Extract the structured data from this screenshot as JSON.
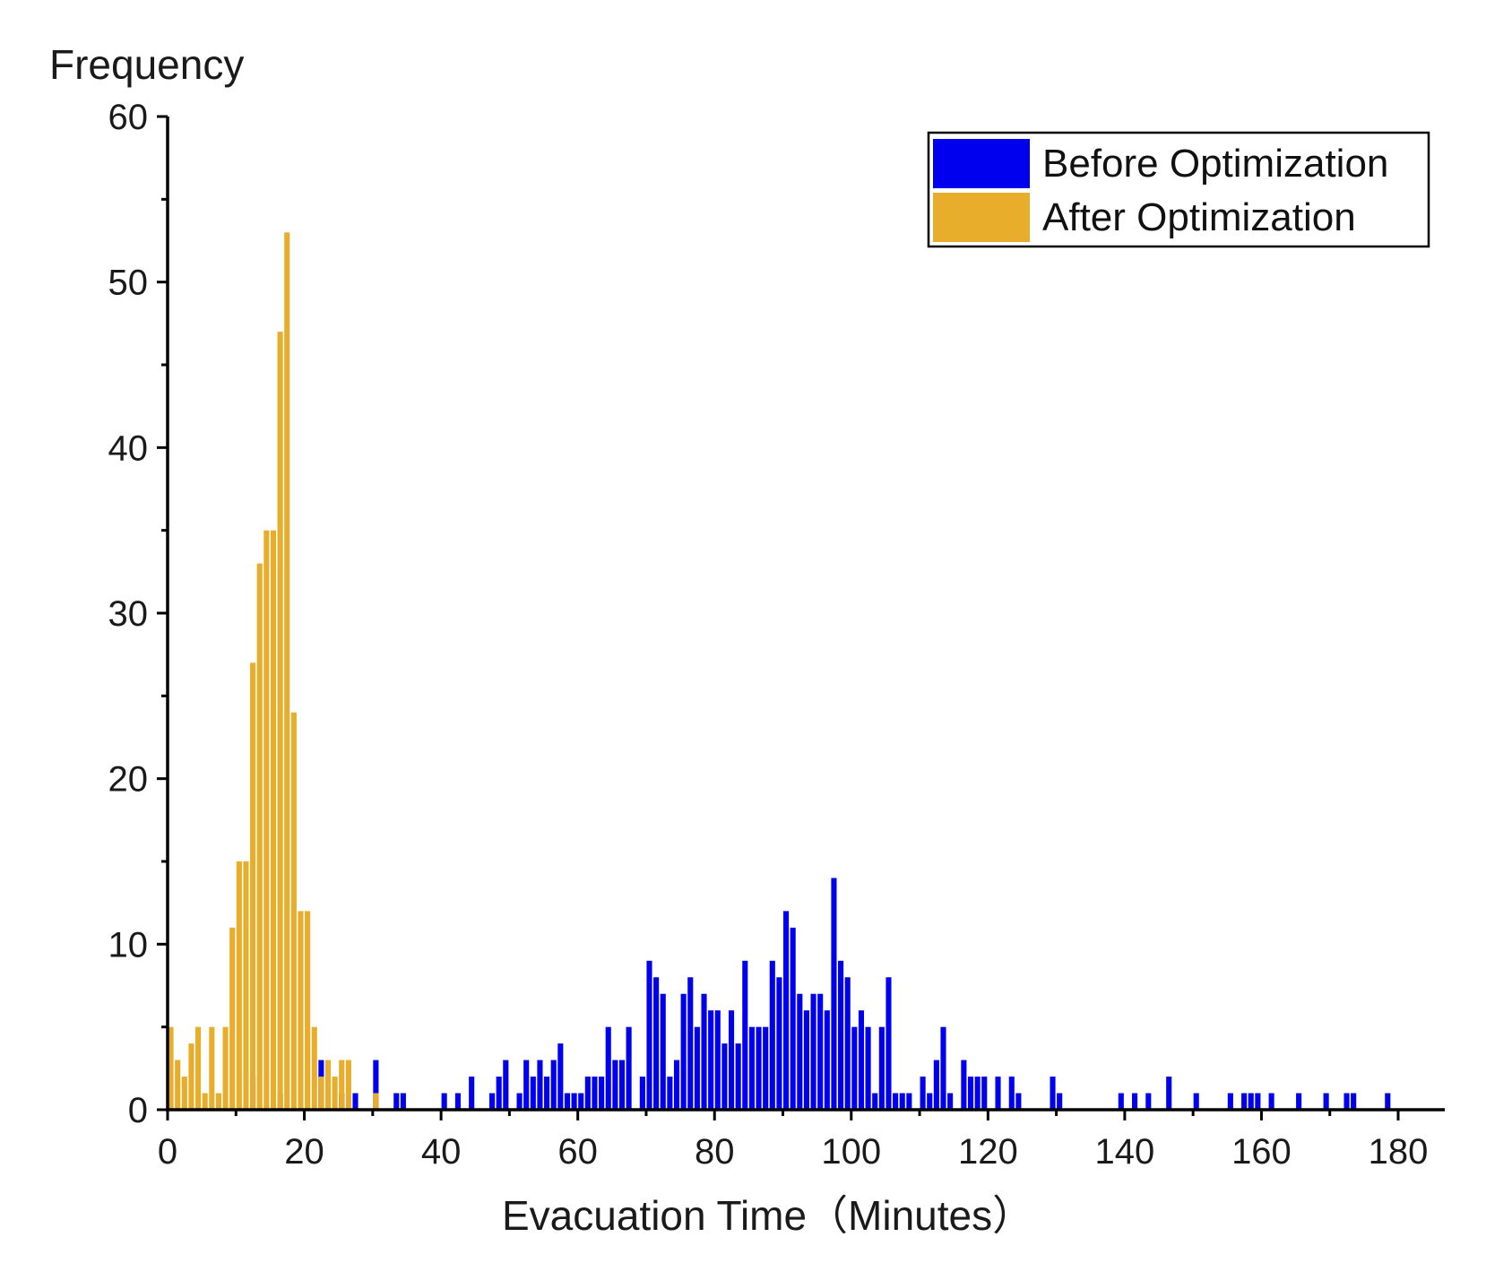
{
  "chart_data": {
    "type": "bar",
    "subtype": "overlaid-histogram",
    "title": "",
    "xlabel": "Evacuation Time（Minutes）",
    "ylabel": "Frequency",
    "xlim": [
      0,
      185
    ],
    "ylim": [
      0,
      60
    ],
    "xticks": [
      0,
      20,
      40,
      60,
      80,
      100,
      120,
      140,
      160,
      180
    ],
    "yticks": [
      0,
      10,
      20,
      30,
      40,
      50,
      60
    ],
    "bin_width": 1,
    "grid": false,
    "legend_position": "top-right",
    "series": [
      {
        "name": "Before Optimization",
        "color": "#0000ee",
        "points": [
          [
            12,
            2
          ],
          [
            16,
            1
          ],
          [
            22,
            3
          ],
          [
            25,
            1
          ],
          [
            27,
            1
          ],
          [
            30,
            3
          ],
          [
            33,
            1
          ],
          [
            34,
            1
          ],
          [
            40,
            1
          ],
          [
            42,
            1
          ],
          [
            44,
            2
          ],
          [
            47,
            1
          ],
          [
            48,
            2
          ],
          [
            49,
            3
          ],
          [
            51,
            1
          ],
          [
            52,
            3
          ],
          [
            53,
            2
          ],
          [
            54,
            3
          ],
          [
            55,
            2
          ],
          [
            56,
            3
          ],
          [
            57,
            4
          ],
          [
            58,
            1
          ],
          [
            59,
            1
          ],
          [
            60,
            1
          ],
          [
            61,
            2
          ],
          [
            62,
            2
          ],
          [
            63,
            2
          ],
          [
            64,
            5
          ],
          [
            65,
            3
          ],
          [
            66,
            3
          ],
          [
            67,
            5
          ],
          [
            69,
            2
          ],
          [
            70,
            9
          ],
          [
            71,
            8
          ],
          [
            72,
            7
          ],
          [
            73,
            2
          ],
          [
            74,
            3
          ],
          [
            75,
            7
          ],
          [
            76,
            8
          ],
          [
            77,
            5
          ],
          [
            78,
            7
          ],
          [
            79,
            6
          ],
          [
            80,
            6
          ],
          [
            81,
            4
          ],
          [
            82,
            6
          ],
          [
            83,
            4
          ],
          [
            84,
            9
          ],
          [
            85,
            5
          ],
          [
            86,
            5
          ],
          [
            87,
            5
          ],
          [
            88,
            9
          ],
          [
            89,
            8
          ],
          [
            90,
            12
          ],
          [
            91,
            11
          ],
          [
            92,
            7
          ],
          [
            93,
            6
          ],
          [
            94,
            7
          ],
          [
            95,
            7
          ],
          [
            96,
            6
          ],
          [
            97,
            14
          ],
          [
            98,
            9
          ],
          [
            99,
            8
          ],
          [
            100,
            5
          ],
          [
            101,
            6
          ],
          [
            102,
            5
          ],
          [
            103,
            1
          ],
          [
            104,
            5
          ],
          [
            105,
            8
          ],
          [
            106,
            1
          ],
          [
            107,
            1
          ],
          [
            108,
            1
          ],
          [
            110,
            2
          ],
          [
            111,
            1
          ],
          [
            112,
            3
          ],
          [
            113,
            5
          ],
          [
            114,
            1
          ],
          [
            116,
            3
          ],
          [
            117,
            2
          ],
          [
            118,
            2
          ],
          [
            119,
            2
          ],
          [
            121,
            2
          ],
          [
            123,
            2
          ],
          [
            124,
            1
          ],
          [
            129,
            2
          ],
          [
            130,
            1
          ],
          [
            139,
            1
          ],
          [
            141,
            1
          ],
          [
            143,
            1
          ],
          [
            146,
            2
          ],
          [
            150,
            1
          ],
          [
            155,
            1
          ],
          [
            157,
            1
          ],
          [
            158,
            1
          ],
          [
            159,
            1
          ],
          [
            161,
            1
          ],
          [
            165,
            1
          ],
          [
            169,
            1
          ],
          [
            172,
            1
          ],
          [
            173,
            1
          ],
          [
            178,
            1
          ]
        ]
      },
      {
        "name": "After Optimization",
        "color": "#e8ad2a",
        "points": [
          [
            0,
            5
          ],
          [
            1,
            3
          ],
          [
            2,
            2
          ],
          [
            3,
            4
          ],
          [
            4,
            5
          ],
          [
            5,
            1
          ],
          [
            6,
            5
          ],
          [
            7,
            1
          ],
          [
            8,
            5
          ],
          [
            9,
            11
          ],
          [
            10,
            15
          ],
          [
            11,
            15
          ],
          [
            12,
            27
          ],
          [
            13,
            33
          ],
          [
            14,
            35
          ],
          [
            15,
            35
          ],
          [
            16,
            47
          ],
          [
            17,
            53
          ],
          [
            18,
            24
          ],
          [
            19,
            12
          ],
          [
            20,
            12
          ],
          [
            21,
            5
          ],
          [
            22,
            2
          ],
          [
            23,
            3
          ],
          [
            24,
            2
          ],
          [
            25,
            3
          ],
          [
            26,
            3
          ],
          [
            30,
            1
          ]
        ]
      }
    ]
  }
}
